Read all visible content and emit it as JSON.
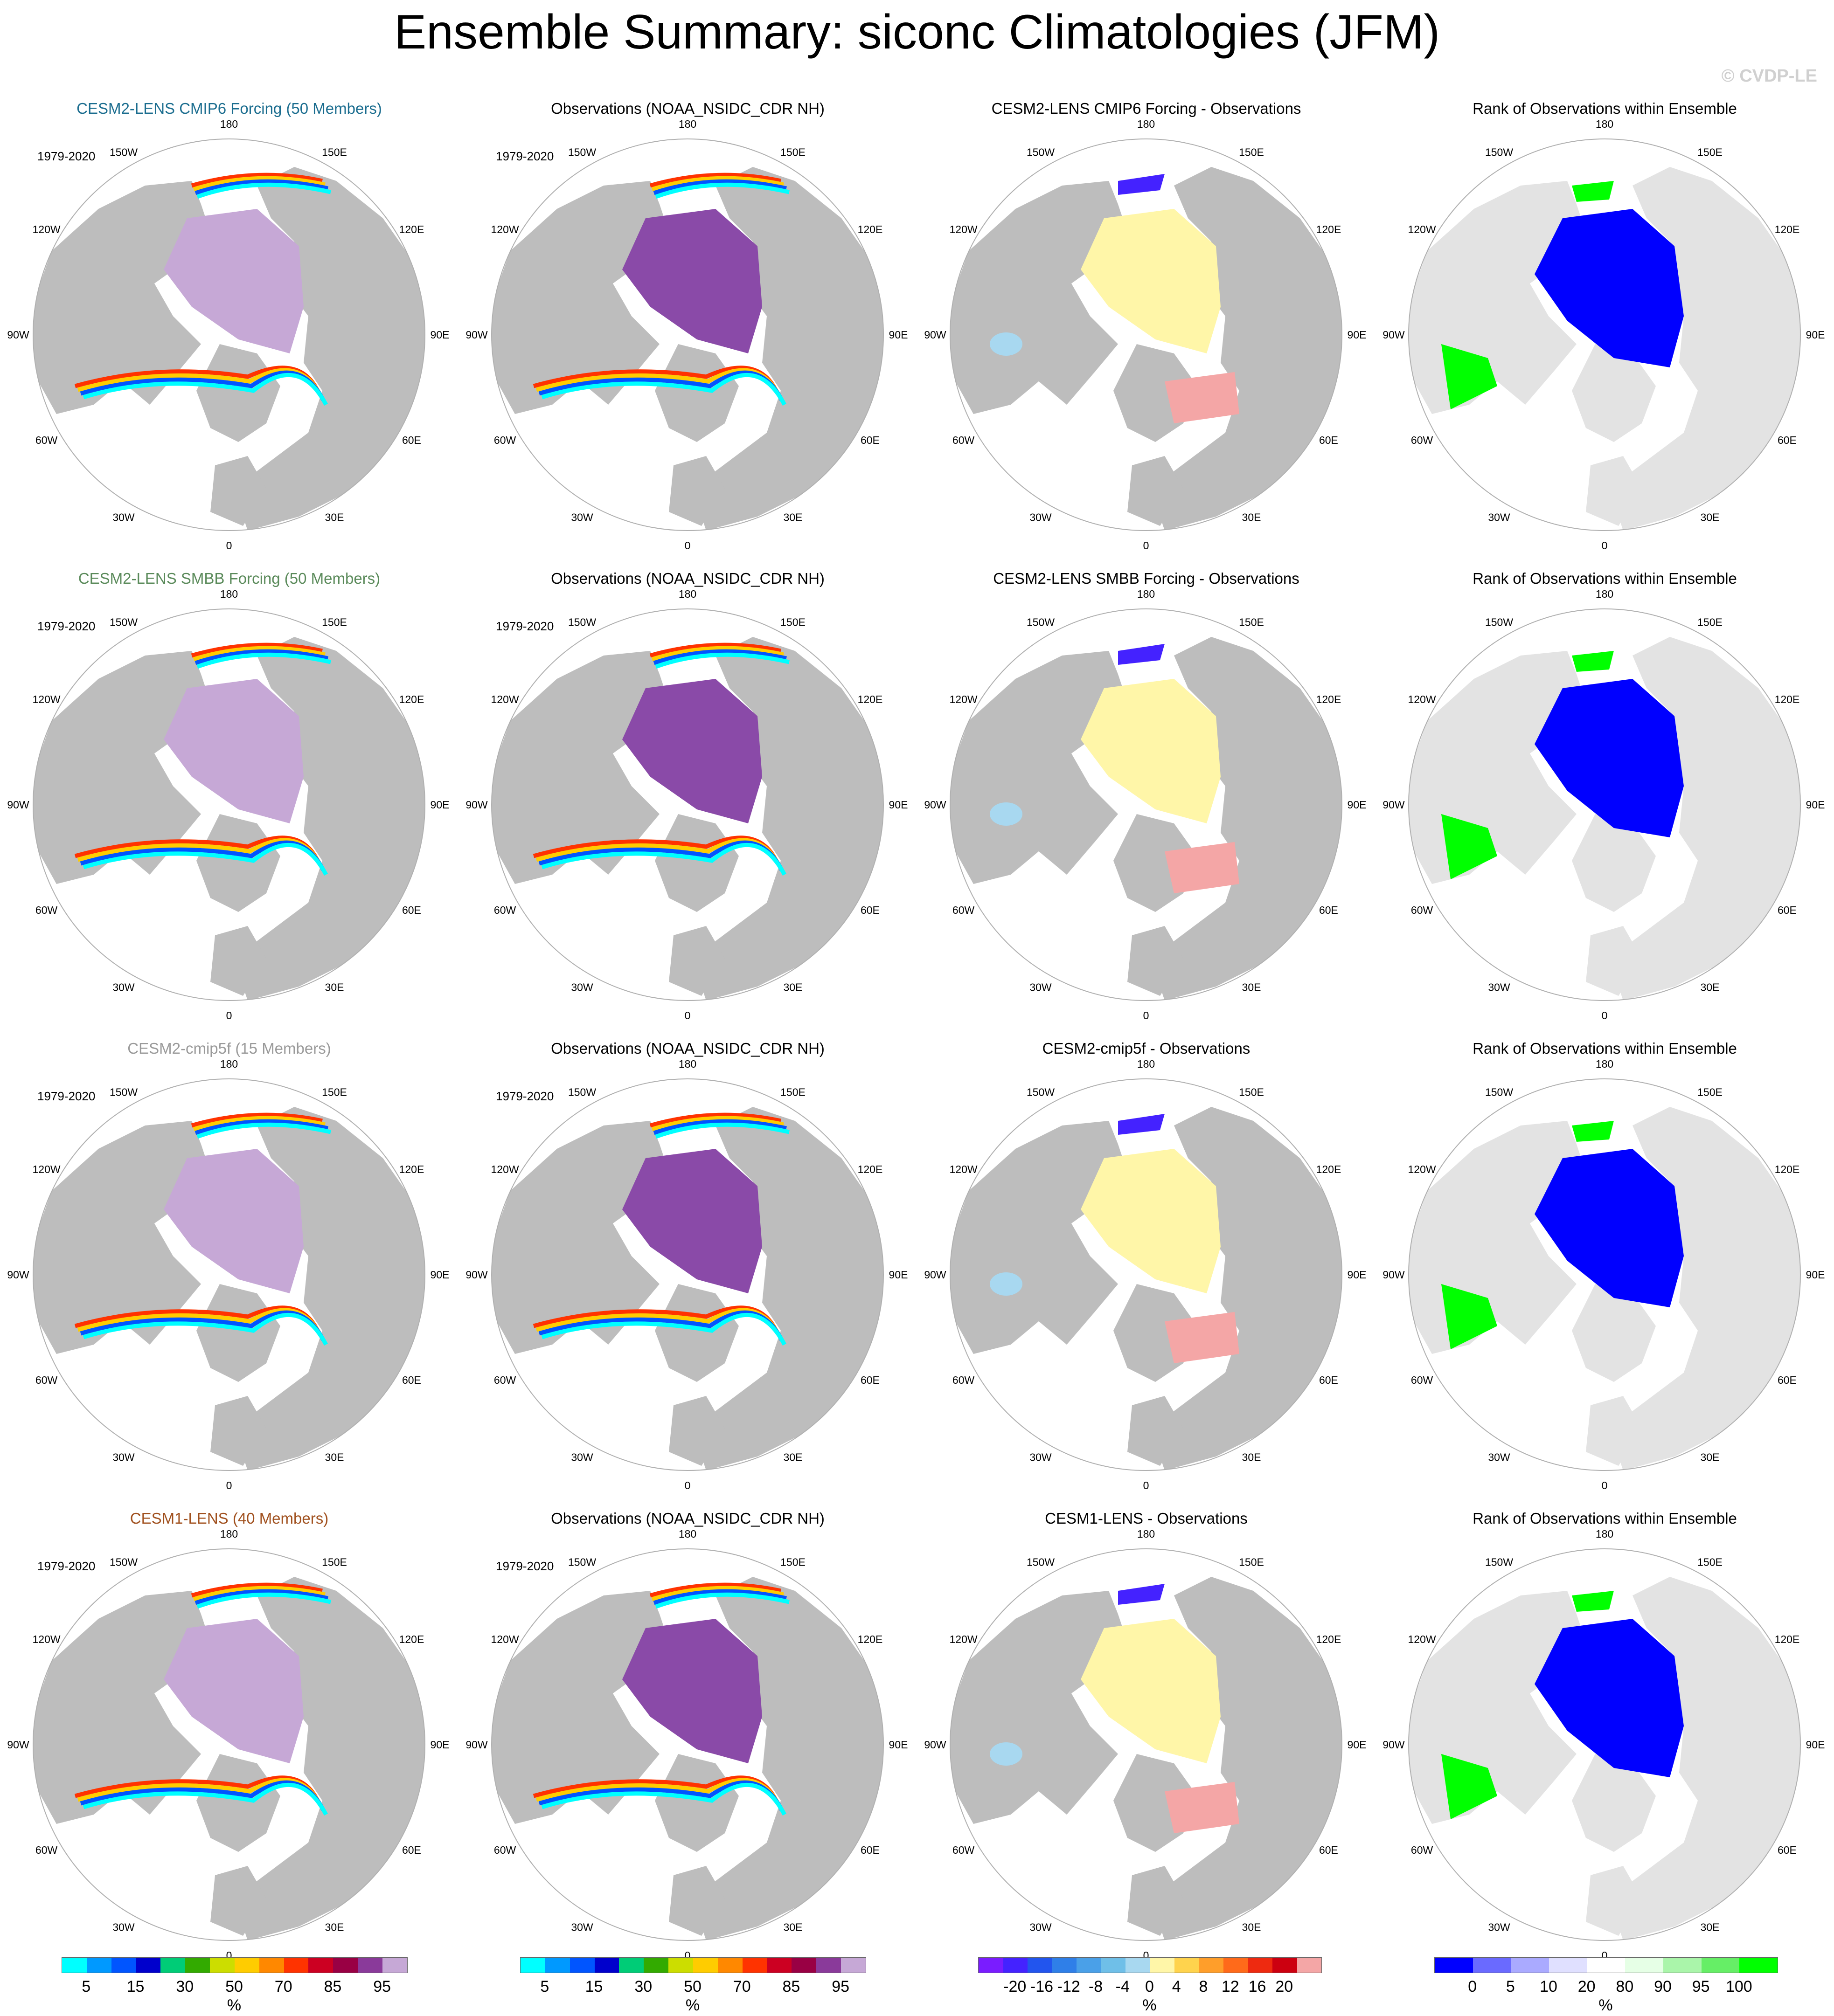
{
  "header": {
    "title": "Ensemble Summary: siconc Climatologies (JFM)",
    "credit": "© CVDP-LE"
  },
  "colors": {
    "land": "#bdbdbd",
    "ocean": "#ffffff",
    "ice_full": "#c6a8d6",
    "rank_land": "#e3e3e3",
    "row_title_colors": [
      "#1b6d8f",
      "#5a8a5a",
      "#9a9a9a",
      "#a0501e"
    ]
  },
  "lon_labels": [
    "180",
    "150E",
    "120E",
    "90E",
    "60E",
    "30E",
    "0",
    "30W",
    "60W",
    "90W",
    "120W",
    "150W"
  ],
  "rows": [
    {
      "model_title": "CESM2-LENS CMIP6 Forcing (50 Members)",
      "obs_title": "Observations (NOAA_NSIDC_CDR NH)",
      "diff_title": "CESM2-LENS CMIP6 Forcing - Observations",
      "rank_title": "Rank of Observations within Ensemble",
      "years_model": "1979-2020",
      "years_obs": "1979-2020"
    },
    {
      "model_title": "CESM2-LENS SMBB Forcing (50 Members)",
      "obs_title": "Observations (NOAA_NSIDC_CDR NH)",
      "diff_title": "CESM2-LENS SMBB Forcing - Observations",
      "rank_title": "Rank of Observations within Ensemble",
      "years_model": "1979-2020",
      "years_obs": "1979-2020"
    },
    {
      "model_title": "CESM2-cmip5f (15 Members)",
      "obs_title": "Observations (NOAA_NSIDC_CDR NH)",
      "diff_title": "CESM2-cmip5f - Observations",
      "rank_title": "Rank of Observations within Ensemble",
      "years_model": "1979-2020",
      "years_obs": "1979-2020"
    },
    {
      "model_title": "CESM1-LENS (40 Members)",
      "obs_title": "Observations (NOAA_NSIDC_CDR NH)",
      "diff_title": "CESM1-LENS - Observations",
      "rank_title": "Rank of Observations within Ensemble",
      "years_model": "1979-2020",
      "years_obs": "1979-2020"
    }
  ],
  "colorbars": {
    "clim": {
      "unit": "%",
      "labels": [
        "5",
        "15",
        "30",
        "50",
        "70",
        "85",
        "95"
      ],
      "colors": [
        "#00ffff",
        "#0099ff",
        "#0055ff",
        "#0000cc",
        "#00cc77",
        "#33aa00",
        "#ccdd00",
        "#ffcc00",
        "#ff8800",
        "#ff3300",
        "#cc0022",
        "#990044",
        "#8a3a9a",
        "#c6a8d6"
      ]
    },
    "diff": {
      "unit": "%",
      "labels": [
        "-20",
        "-16",
        "-12",
        "-8",
        "-4",
        "0",
        "4",
        "8",
        "12",
        "16",
        "20"
      ],
      "colors": [
        "#7a1cff",
        "#4422ff",
        "#2255ee",
        "#2f7fe8",
        "#4aa0e8",
        "#6fbfe8",
        "#a8d8f0",
        "#fff6a8",
        "#ffd34d",
        "#ff9e2a",
        "#ff6a1a",
        "#ee2a10",
        "#cc0010",
        "#f4a6a6"
      ]
    },
    "rank": {
      "unit": "%",
      "labels": [
        "0",
        "5",
        "10",
        "20",
        "80",
        "90",
        "95",
        "100"
      ],
      "colors": [
        "#0000ff",
        "#6a6aff",
        "#aaaaff",
        "#e0e0ff",
        "#ffffff",
        "#e6ffe6",
        "#aaf5aa",
        "#66ee66",
        "#00ff00"
      ]
    }
  }
}
